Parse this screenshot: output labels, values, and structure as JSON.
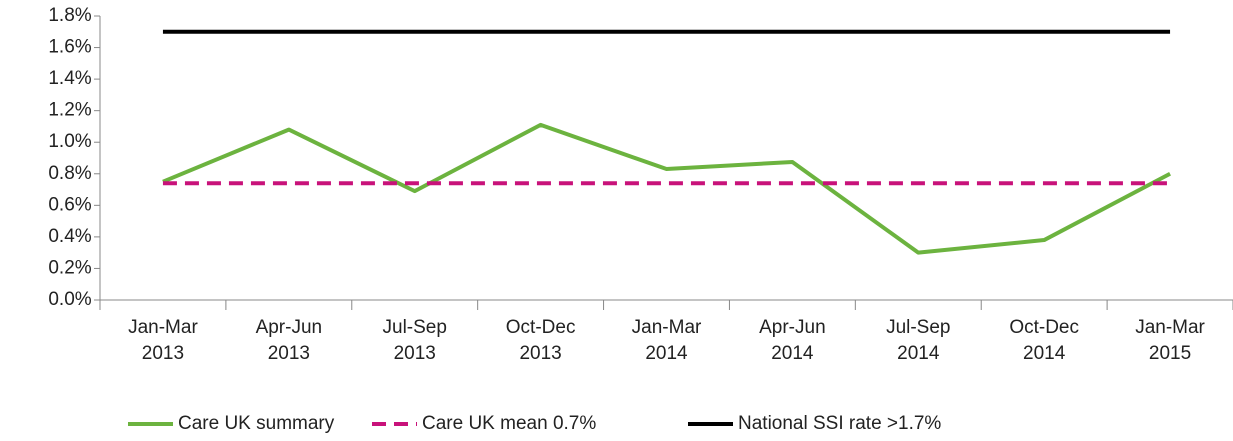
{
  "chart_data": {
    "type": "line",
    "categories": [
      [
        "Jan-Mar",
        "2013"
      ],
      [
        "Apr-Jun",
        "2013"
      ],
      [
        "Jul-Sep",
        "2013"
      ],
      [
        "Oct-Dec",
        "2013"
      ],
      [
        "Jan-Mar",
        "2014"
      ],
      [
        "Apr-Jun",
        "2014"
      ],
      [
        "Jul-Sep",
        "2014"
      ],
      [
        "Oct-Dec",
        "2014"
      ],
      [
        "Jan-Mar",
        "2015"
      ]
    ],
    "series": [
      {
        "name": "Care UK summary",
        "color": "#6cb33f",
        "dash": false,
        "values": [
          0.75,
          1.08,
          0.69,
          1.11,
          0.83,
          0.875,
          0.3,
          0.38,
          0.8
        ]
      },
      {
        "name": "Care UK mean 0.7%",
        "color": "#c8127a",
        "dash": true,
        "values": [
          0.74,
          0.74,
          0.74,
          0.74,
          0.74,
          0.74,
          0.74,
          0.74,
          0.74
        ]
      },
      {
        "name": "National SSI rate >1.7%",
        "color": "#000000",
        "dash": false,
        "values": [
          1.7,
          1.7,
          1.7,
          1.7,
          1.7,
          1.7,
          1.7,
          1.7,
          1.7
        ]
      }
    ],
    "ylim": [
      0,
      1.8
    ],
    "yticks": [
      {
        "value": 0,
        "label": "0.0%"
      },
      {
        "value": 0.2,
        "label": "0.2%"
      },
      {
        "value": 0.4,
        "label": "0.4%"
      },
      {
        "value": 0.6,
        "label": "0.6%"
      },
      {
        "value": 0.8,
        "label": "0.8%"
      },
      {
        "value": 1.0,
        "label": "1.0%"
      },
      {
        "value": 1.2,
        "label": "1.2%"
      },
      {
        "value": 1.4,
        "label": "1.4%"
      },
      {
        "value": 1.6,
        "label": "1.6%"
      },
      {
        "value": 1.8,
        "label": "1.8%"
      }
    ],
    "legend": "bottom"
  }
}
